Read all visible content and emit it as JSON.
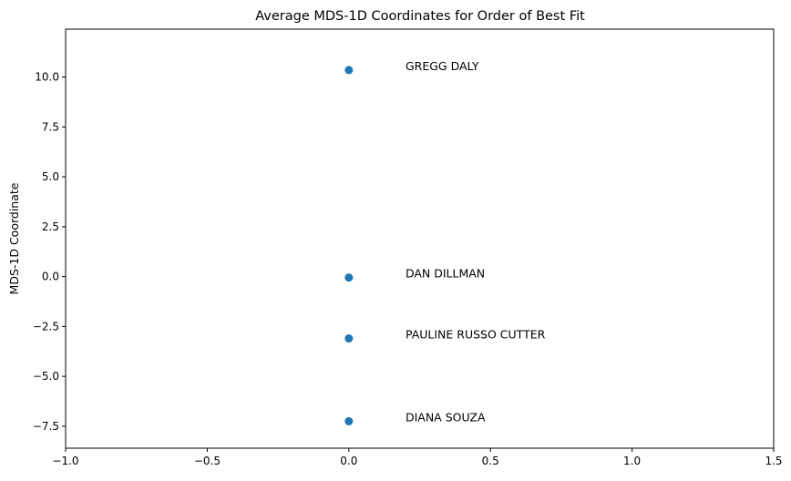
{
  "chart_data": {
    "type": "scatter",
    "title": "Average MDS-1D Coordinates for Order of Best Fit",
    "xlabel": "",
    "ylabel": "MDS-1D Coordinate",
    "xlim": [
      -1.0,
      1.5
    ],
    "ylim": [
      -8.6,
      12.4
    ],
    "x_ticks": [
      -1.0,
      -0.5,
      0.0,
      0.5,
      1.0,
      1.5
    ],
    "x_tick_labels": [
      "−1.0",
      "−0.5",
      "0.0",
      "0.5",
      "1.0",
      "1.5"
    ],
    "y_ticks": [
      -7.5,
      -5.0,
      -2.5,
      0.0,
      2.5,
      5.0,
      7.5,
      10.0
    ],
    "y_tick_labels": [
      "−7.5",
      "−5.0",
      "−2.5",
      "0.0",
      "2.5",
      "5.0",
      "7.5",
      "10.0"
    ],
    "grid": false,
    "marker_color": "#1f77b4",
    "label_x_offset": 0.2,
    "points": [
      {
        "label": "GREGG DALY",
        "x": 0.0,
        "y": 10.35
      },
      {
        "label": "DAN DILLMAN",
        "x": 0.0,
        "y": -0.05
      },
      {
        "label": "PAULINE RUSSO CUTTER",
        "x": 0.0,
        "y": -3.1
      },
      {
        "label": "DIANA SOUZA",
        "x": 0.0,
        "y": -7.25
      }
    ]
  }
}
